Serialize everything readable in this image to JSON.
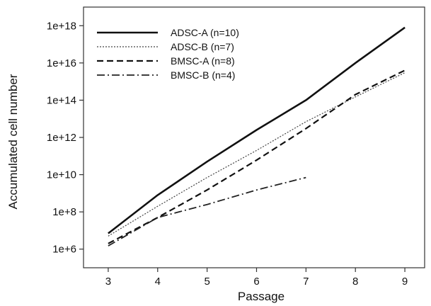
{
  "chart_data": {
    "type": "line",
    "title": "",
    "xlabel": "Passage",
    "ylabel": "Accumulated cell number",
    "x_ticks": [
      3,
      4,
      5,
      6,
      7,
      8,
      9
    ],
    "xlim": [
      2.5,
      9.4
    ],
    "y_scale": "log10",
    "y_ticks": [
      "1e+6",
      "1e+8",
      "1e+10",
      "1e+12",
      "1e+14",
      "1e+16",
      "1e+18"
    ],
    "ylim": [
      100000.0,
      1e+19
    ],
    "grid": false,
    "legend": "top-left",
    "series": [
      {
        "name": "ADSC-A (n=10)",
        "style": "solid-thick",
        "color": "#111111",
        "x": [
          3,
          4,
          5,
          6,
          7,
          8,
          9
        ],
        "y": [
          7000000.0,
          800000000.0,
          50000000000.0,
          2500000000000.0,
          100000000000000.0,
          1e+16,
          8e+17
        ]
      },
      {
        "name": "ADSC-B (n=7)",
        "style": "dotted",
        "color": "#444444",
        "x": [
          3,
          4,
          5,
          6,
          7,
          8,
          9
        ],
        "y": [
          5000000.0,
          200000000.0,
          7000000000.0,
          200000000000.0,
          7000000000000.0,
          150000000000000.0,
          3000000000000000.0
        ]
      },
      {
        "name": "BMSC-A (n=8)",
        "style": "dashed",
        "color": "#111111",
        "x": [
          3,
          4,
          5,
          6,
          7,
          8,
          9
        ],
        "y": [
          2000000.0,
          50000000.0,
          1500000000.0,
          60000000000.0,
          3000000000000.0,
          200000000000000.0,
          4000000000000000.0
        ]
      },
      {
        "name": "BMSC-B (n=4)",
        "style": "dash-dot",
        "color": "#222222",
        "x": [
          3,
          4,
          5,
          6,
          7
        ],
        "y": [
          1500000.0,
          50000000.0,
          250000000.0,
          1500000000.0,
          7000000000.0
        ]
      }
    ]
  }
}
